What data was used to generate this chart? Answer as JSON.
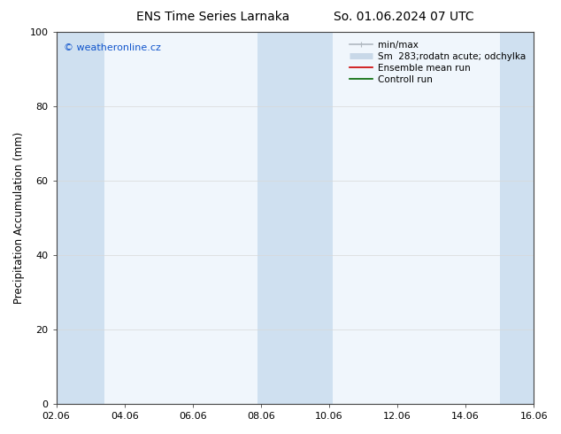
{
  "title": "ENS Time Series Larnaka",
  "title2": "So. 01.06.2024 07 UTC",
  "ylabel": "Precipitation Accumulation (mm)",
  "ylim": [
    0,
    100
  ],
  "xlim": [
    0,
    14
  ],
  "xtick_labels": [
    "02.06",
    "04.06",
    "06.06",
    "08.06",
    "10.06",
    "12.06",
    "14.06",
    "16.06"
  ],
  "xtick_positions": [
    0,
    2,
    4,
    6,
    8,
    10,
    12,
    14
  ],
  "ytick_labels": [
    "0",
    "20",
    "40",
    "60",
    "80",
    "100"
  ],
  "ytick_positions": [
    0,
    20,
    40,
    60,
    80,
    100
  ],
  "shaded_bands": [
    {
      "x_start": 0.0,
      "x_end": 1.4
    },
    {
      "x_start": 5.9,
      "x_end": 8.1
    },
    {
      "x_start": 13.0,
      "x_end": 14.0
    }
  ],
  "shade_color": "#cfe0f0",
  "legend_entries": [
    {
      "label": "min/max",
      "color": "#b0b8c0",
      "lw": 1.2
    },
    {
      "label": "Sm  283;rodatn acute; odchylka",
      "color": "#c8d8e8",
      "lw": 5
    },
    {
      "label": "Ensemble mean run",
      "color": "#cc0000",
      "lw": 1.2
    },
    {
      "label": "Controll run",
      "color": "#006600",
      "lw": 1.2
    }
  ],
  "watermark": "© weatheronline.cz",
  "watermark_color": "#1155cc",
  "background_color": "#ffffff",
  "plot_bg_color": "#f0f6fc",
  "grid_color": "#d8d8d8",
  "title_fontsize": 10,
  "tick_fontsize": 8,
  "ylabel_fontsize": 8.5,
  "legend_fontsize": 7.5
}
